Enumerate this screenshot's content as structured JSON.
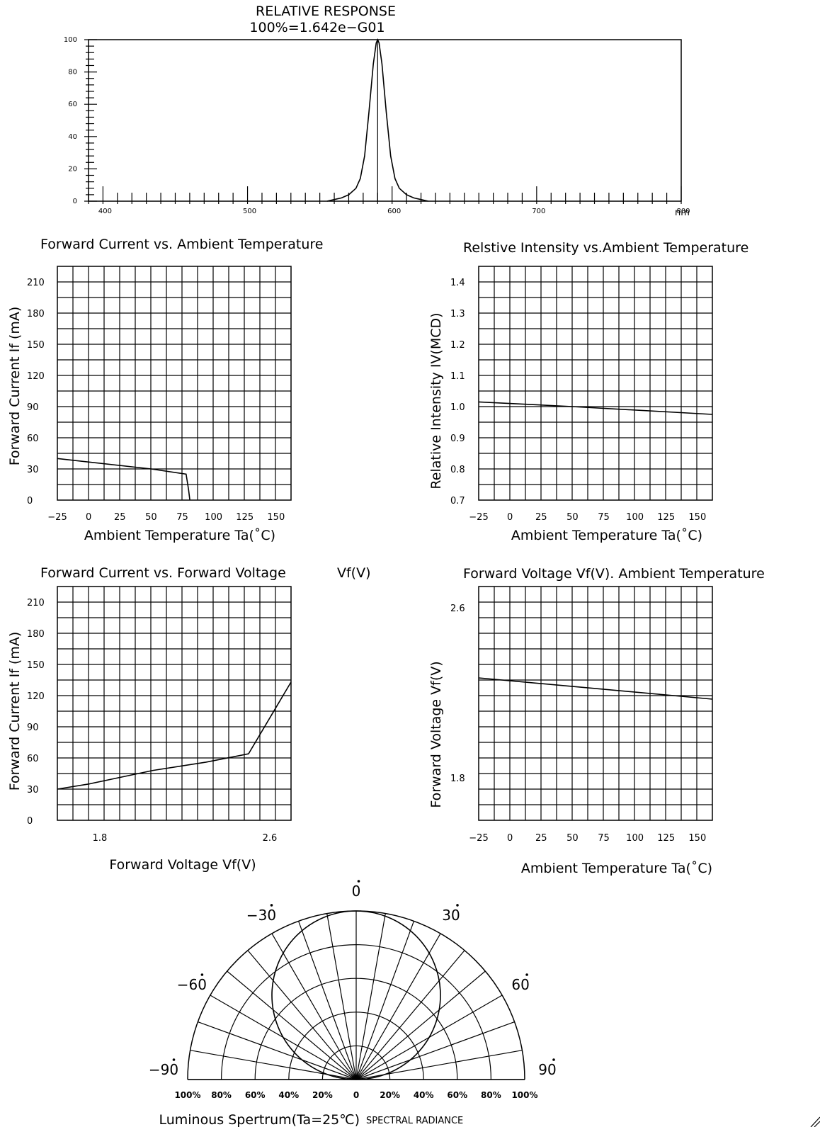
{
  "chart_data": [
    {
      "id": "spectrum",
      "type": "line",
      "title": "RELATIVE RESPONSE",
      "subtitle": "100%=1.642e−G01",
      "x_unit": "nm",
      "xlim": [
        390,
        800
      ],
      "ylim": [
        0,
        100
      ],
      "x_ticks": [
        "400",
        "500",
        "600",
        "700",
        "800"
      ],
      "y_ticks": [
        "0",
        "20",
        "40",
        "60",
        "80",
        "100"
      ],
      "peak_marker_x": 590,
      "x": [
        555,
        560,
        565,
        570,
        575,
        578,
        581,
        584,
        587,
        589,
        590,
        591,
        593,
        596,
        599,
        602,
        605,
        610,
        615,
        620,
        625
      ],
      "y": [
        0,
        1,
        2,
        4,
        8,
        14,
        28,
        55,
        85,
        98,
        100,
        98,
        85,
        55,
        28,
        14,
        8,
        4,
        2,
        1,
        0
      ]
    },
    {
      "id": "if_vs_ta",
      "type": "line",
      "title": "Forward Current vs. Ambient Temperature",
      "xlabel": "Ambient Temperature Ta(˚C)",
      "ylabel": "Forward Current  If (mA)",
      "xlim": [
        -25,
        162
      ],
      "ylim": [
        0,
        225
      ],
      "x_ticks": [
        "−25",
        "0",
        "25",
        "50",
        "75",
        "100",
        "125",
        "150"
      ],
      "y_ticks": [
        "0",
        "30",
        "60",
        "90",
        "120",
        "150",
        "180",
        "210"
      ],
      "x": [
        -25,
        50,
        78,
        80,
        81
      ],
      "y": [
        40,
        30,
        25,
        10,
        0
      ]
    },
    {
      "id": "iv_vs_ta",
      "type": "line",
      "title": "Relstive Intensity vs.Ambient Temperature",
      "xlabel": "Ambient Temperature Ta(˚C)",
      "ylabel": "Relative Intensity IV(MCD)",
      "xlim": [
        -25,
        162
      ],
      "ylim": [
        0.7,
        1.45
      ],
      "x_ticks": [
        "−25",
        "0",
        "25",
        "50",
        "75",
        "100",
        "125",
        "150"
      ],
      "y_ticks": [
        "0.7",
        "0.8",
        "0.9",
        "1.0",
        "1.1",
        "1.2",
        "1.3",
        "1.4"
      ],
      "x": [
        -25,
        50,
        162
      ],
      "y": [
        1.015,
        1.0,
        0.975
      ]
    },
    {
      "id": "if_vs_vf",
      "type": "line",
      "title": "Forward Current vs. Forward Voltage",
      "title_unit": "Vf(V)",
      "xlabel": "Forward Voltage   Vf(V)",
      "ylabel": "Forward Current  If (mA)",
      "xlim": [
        1.6,
        2.7
      ],
      "ylim": [
        0,
        225
      ],
      "x_ticks": [
        "1.8",
        "2.6"
      ],
      "y_ticks": [
        "0",
        "30",
        "60",
        "90",
        "120",
        "150",
        "180",
        "210"
      ],
      "x": [
        1.6,
        1.75,
        2.05,
        2.3,
        2.5,
        2.7
      ],
      "y": [
        30,
        35,
        48,
        56,
        64,
        133
      ]
    },
    {
      "id": "vf_vs_ta",
      "type": "line",
      "title": "Forward Voltage   Vf(V). Ambient Temperature",
      "xlabel": "Ambient Temperature Ta(˚C)",
      "ylabel": "Forward Voltage   Vf(V)",
      "xlim": [
        -25,
        162
      ],
      "ylim": [
        1.6,
        2.7
      ],
      "x_ticks": [
        "−25",
        "0",
        "25",
        "50",
        "75",
        "100",
        "125",
        "150"
      ],
      "y_ticks": [
        "1.8",
        "2.6"
      ],
      "x": [
        -25,
        162
      ],
      "y": [
        2.27,
        2.17
      ]
    },
    {
      "id": "polar",
      "type": "polar",
      "caption": "Luminous Spertrum(Ta=25℃)",
      "caption_small": "SPECTRAL RADIANCE",
      "angle_labels": [
        {
          "text": "0",
          "deg": 0
        },
        {
          "text": "30",
          "deg": 30
        },
        {
          "text": "−30",
          "deg": -30
        },
        {
          "text": "60",
          "deg": 60
        },
        {
          "text": "−60",
          "deg": -60
        },
        {
          "text": "90",
          "deg": 90
        },
        {
          "text": "−90",
          "deg": -90
        }
      ],
      "radial_labels": [
        "100%",
        "80%",
        "60%",
        "40%",
        "20%",
        "0",
        "20%",
        "40%",
        "60%",
        "80%",
        "100%"
      ],
      "pattern": "circle",
      "pattern_peak": 1.0
    }
  ]
}
